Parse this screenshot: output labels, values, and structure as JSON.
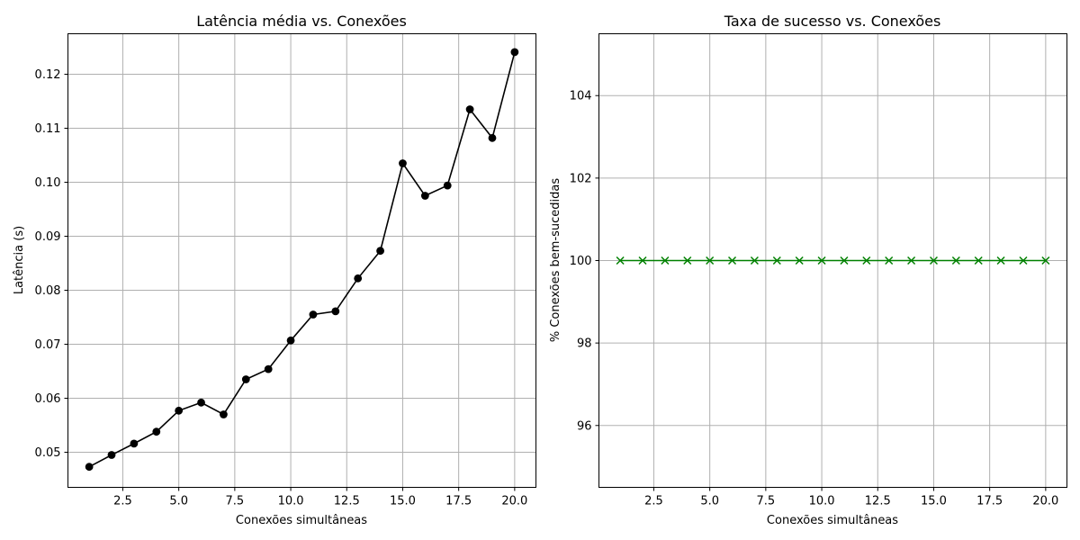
{
  "chart_data": [
    {
      "type": "line",
      "title": "Latência média vs. Conexões",
      "xlabel": "Conexões simultâneas",
      "ylabel": "Latência (s)",
      "xlim": [
        0.05,
        20.95
      ],
      "ylim": [
        0.0435,
        0.1275
      ],
      "xticks": [
        2.5,
        5.0,
        7.5,
        10.0,
        12.5,
        15.0,
        17.5,
        20.0
      ],
      "xtick_labels": [
        "2.5",
        "5.0",
        "7.5",
        "10.0",
        "12.5",
        "15.0",
        "17.5",
        "20.0"
      ],
      "yticks": [
        0.05,
        0.06,
        0.07,
        0.08,
        0.09,
        0.1,
        0.11,
        0.12
      ],
      "ytick_labels": [
        "0.05",
        "0.06",
        "0.07",
        "0.08",
        "0.09",
        "0.10",
        "0.11",
        "0.12"
      ],
      "grid": true,
      "series": [
        {
          "color": "#000000",
          "marker": "circle",
          "x": [
            1,
            2,
            3,
            4,
            5,
            6,
            7,
            8,
            9,
            10,
            11,
            12,
            13,
            14,
            15,
            16,
            17,
            18,
            19,
            20
          ],
          "values": [
            0.0473,
            0.0495,
            0.0516,
            0.0538,
            0.0577,
            0.0592,
            0.057,
            0.0635,
            0.0654,
            0.0707,
            0.0755,
            0.0761,
            0.0822,
            0.0873,
            0.1035,
            0.0975,
            0.0994,
            0.1135,
            0.1082,
            0.1241
          ]
        }
      ]
    },
    {
      "type": "line",
      "title": "Taxa de sucesso vs. Conexões",
      "xlabel": "Conexões simultâneas",
      "ylabel": "% Conexões bem-sucedidas",
      "xlim": [
        0.05,
        20.95
      ],
      "ylim": [
        94.5,
        105.5
      ],
      "xticks": [
        2.5,
        5.0,
        7.5,
        10.0,
        12.5,
        15.0,
        17.5,
        20.0
      ],
      "xtick_labels": [
        "2.5",
        "5.0",
        "7.5",
        "10.0",
        "12.5",
        "15.0",
        "17.5",
        "20.0"
      ],
      "yticks": [
        96,
        98,
        100,
        102,
        104
      ],
      "ytick_labels": [
        "96",
        "98",
        "100",
        "102",
        "104"
      ],
      "grid": true,
      "series": [
        {
          "color": "#008000",
          "marker": "x",
          "x": [
            1,
            2,
            3,
            4,
            5,
            6,
            7,
            8,
            9,
            10,
            11,
            12,
            13,
            14,
            15,
            16,
            17,
            18,
            19,
            20
          ],
          "values": [
            100,
            100,
            100,
            100,
            100,
            100,
            100,
            100,
            100,
            100,
            100,
            100,
            100,
            100,
            100,
            100,
            100,
            100,
            100,
            100
          ]
        }
      ]
    }
  ]
}
